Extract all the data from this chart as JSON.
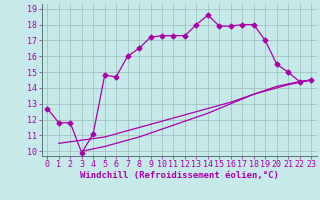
{
  "xlabel": "Windchill (Refroidissement éolien,°C)",
  "bg_color": "#c6eaea",
  "grid_color": "#9bbcbc",
  "line_color": "#aa00aa",
  "xlim": [
    -0.5,
    23.5
  ],
  "ylim": [
    9.7,
    19.3
  ],
  "xticks": [
    0,
    1,
    2,
    3,
    4,
    5,
    6,
    7,
    8,
    9,
    10,
    11,
    12,
    13,
    14,
    15,
    16,
    17,
    18,
    19,
    20,
    21,
    22,
    23
  ],
  "yticks": [
    10,
    11,
    12,
    13,
    14,
    15,
    16,
    17,
    18,
    19
  ],
  "line1_x": [
    0,
    1,
    2,
    3,
    4,
    5,
    6,
    7,
    8,
    9,
    10,
    11,
    12,
    13,
    14,
    15,
    16,
    17,
    18,
    19,
    20,
    21,
    22,
    23
  ],
  "line1_y": [
    12.7,
    11.8,
    11.8,
    9.9,
    11.1,
    14.8,
    14.7,
    16.0,
    16.5,
    17.2,
    17.3,
    17.3,
    17.3,
    18.0,
    18.6,
    17.9,
    17.9,
    18.0,
    18.0,
    17.0,
    15.5,
    15.0,
    14.4,
    14.5
  ],
  "line2_x": [
    1,
    2,
    3,
    4,
    5,
    6,
    7,
    8,
    9,
    10,
    11,
    12,
    13,
    14,
    15,
    16,
    17,
    18,
    19,
    20,
    21,
    22,
    23
  ],
  "line2_y": [
    10.5,
    10.6,
    10.7,
    10.8,
    10.9,
    11.1,
    11.3,
    11.5,
    11.7,
    11.9,
    12.1,
    12.3,
    12.5,
    12.7,
    12.9,
    13.1,
    13.35,
    13.6,
    13.8,
    14.0,
    14.2,
    14.35,
    14.5
  ],
  "line3_x": [
    3,
    4,
    5,
    6,
    7,
    8,
    9,
    10,
    11,
    12,
    13,
    14,
    15,
    16,
    17,
    18,
    19,
    20,
    21,
    22,
    23
  ],
  "line3_y": [
    10.0,
    10.15,
    10.3,
    10.5,
    10.7,
    10.9,
    11.15,
    11.4,
    11.65,
    11.9,
    12.15,
    12.4,
    12.7,
    13.0,
    13.3,
    13.6,
    13.85,
    14.1,
    14.25,
    14.4,
    14.5
  ],
  "marker": "D",
  "markersize": 2.5,
  "linewidth": 0.9,
  "xlabel_fontsize": 6.5,
  "tick_fontsize": 6.0
}
